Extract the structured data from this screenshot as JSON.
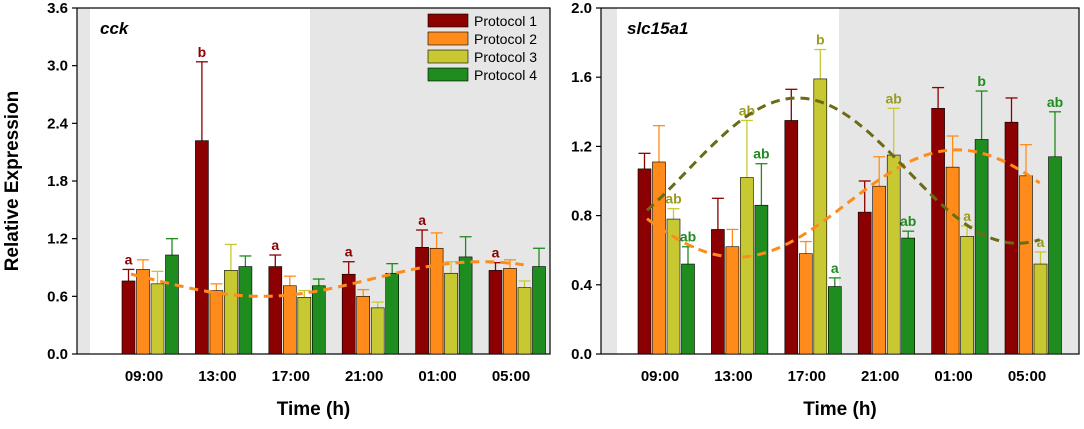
{
  "chart_data": [
    {
      "type": "bar",
      "title": "cck",
      "xlabel": "Time (h)",
      "ylabel": "Relative Expression",
      "categories": [
        "09:00",
        "13:00",
        "17:00",
        "21:00",
        "01:00",
        "05:00"
      ],
      "ylim": [
        0,
        3.6
      ],
      "yticks": [
        "0.0",
        "0.6",
        "1.2",
        "1.8",
        "2.4",
        "3.0",
        "3.6"
      ],
      "series": [
        {
          "name": "Protocol 1",
          "color": "#8B0000",
          "values": [
            0.76,
            2.22,
            0.91,
            0.83,
            1.11,
            0.87
          ],
          "errors": [
            0.12,
            0.82,
            0.12,
            0.13,
            0.18,
            0.08
          ]
        },
        {
          "name": "Protocol 2",
          "color": "#FF8C1A",
          "values": [
            0.88,
            0.66,
            0.71,
            0.6,
            1.1,
            0.89
          ],
          "errors": [
            0.1,
            0.07,
            0.1,
            0.07,
            0.16,
            0.09
          ]
        },
        {
          "name": "Protocol 3",
          "color": "#C8C832",
          "values": [
            0.73,
            0.87,
            0.59,
            0.48,
            0.84,
            0.69
          ],
          "errors": [
            0.13,
            0.27,
            0.07,
            0.06,
            0.12,
            0.07
          ]
        },
        {
          "name": "Protocol 4",
          "color": "#1E8C1E",
          "values": [
            1.03,
            0.91,
            0.71,
            0.84,
            1.01,
            0.91
          ],
          "errors": [
            0.17,
            0.11,
            0.07,
            0.1,
            0.21,
            0.19
          ]
        }
      ],
      "annotations": [
        {
          "text": "a",
          "category": "09:00",
          "series": "Protocol 1"
        },
        {
          "text": "b",
          "category": "13:00",
          "series": "Protocol 1"
        },
        {
          "text": "a",
          "category": "17:00",
          "series": "Protocol 1"
        },
        {
          "text": "a",
          "category": "21:00",
          "series": "Protocol 1"
        },
        {
          "text": "a",
          "category": "01:00",
          "series": "Protocol 1"
        },
        {
          "text": "a",
          "category": "05:00",
          "series": "Protocol 1"
        }
      ],
      "fit_curves": [
        {
          "series": "Protocol 2",
          "mean": 0.78,
          "amplitude": 0.18,
          "peak_time_h": 3.5
        }
      ]
    },
    {
      "type": "bar",
      "title": "slc15a1",
      "xlabel": "Time (h)",
      "ylabel": "",
      "categories": [
        "09:00",
        "13:00",
        "17:00",
        "21:00",
        "01:00",
        "05:00"
      ],
      "ylim": [
        0,
        2.0
      ],
      "yticks": [
        "0.0",
        "0.4",
        "0.8",
        "1.2",
        "1.6",
        "2.0"
      ],
      "series": [
        {
          "name": "Protocol 1",
          "color": "#8B0000",
          "values": [
            1.07,
            0.72,
            1.35,
            0.82,
            1.42,
            1.34
          ],
          "errors": [
            0.09,
            0.18,
            0.18,
            0.18,
            0.12,
            0.14
          ]
        },
        {
          "name": "Protocol 2",
          "color": "#FF8C1A",
          "values": [
            1.11,
            0.62,
            0.58,
            0.97,
            1.08,
            1.03
          ],
          "errors": [
            0.21,
            0.1,
            0.07,
            0.17,
            0.18,
            0.18
          ]
        },
        {
          "name": "Protocol 3",
          "color": "#C8C832",
          "values": [
            0.78,
            1.02,
            1.59,
            1.15,
            0.68,
            0.52
          ],
          "errors": [
            0.06,
            0.33,
            0.17,
            0.27,
            0.06,
            0.07
          ]
        },
        {
          "name": "Protocol 4",
          "color": "#1E8C1E",
          "values": [
            0.52,
            0.86,
            0.39,
            0.67,
            1.24,
            1.14
          ],
          "errors": [
            0.1,
            0.24,
            0.05,
            0.04,
            0.28,
            0.26
          ]
        }
      ],
      "annotations": [
        {
          "text": "ab",
          "category": "09:00",
          "series": "Protocol 3"
        },
        {
          "text": "ab",
          "category": "09:00",
          "series": "Protocol 4"
        },
        {
          "text": "ab",
          "category": "13:00",
          "series": "Protocol 3"
        },
        {
          "text": "ab",
          "category": "13:00",
          "series": "Protocol 4"
        },
        {
          "text": "b",
          "category": "17:00",
          "series": "Protocol 3"
        },
        {
          "text": "a",
          "category": "17:00",
          "series": "Protocol 4"
        },
        {
          "text": "ab",
          "category": "21:00",
          "series": "Protocol 3"
        },
        {
          "text": "ab",
          "category": "21:00",
          "series": "Protocol 4"
        },
        {
          "text": "a",
          "category": "01:00",
          "series": "Protocol 3"
        },
        {
          "text": "b",
          "category": "01:00",
          "series": "Protocol 4"
        },
        {
          "text": "a",
          "category": "05:00",
          "series": "Protocol 3"
        },
        {
          "text": "ab",
          "category": "05:00",
          "series": "Protocol 4"
        }
      ],
      "fit_curves": [
        {
          "series": "Protocol 2",
          "mean": 0.87,
          "amplitude": 0.31,
          "peak_time_h": 1.3
        },
        {
          "series": "Protocol 3",
          "mean": 1.06,
          "amplitude": 0.42,
          "peak_time_h": 16.6
        }
      ]
    }
  ]
}
